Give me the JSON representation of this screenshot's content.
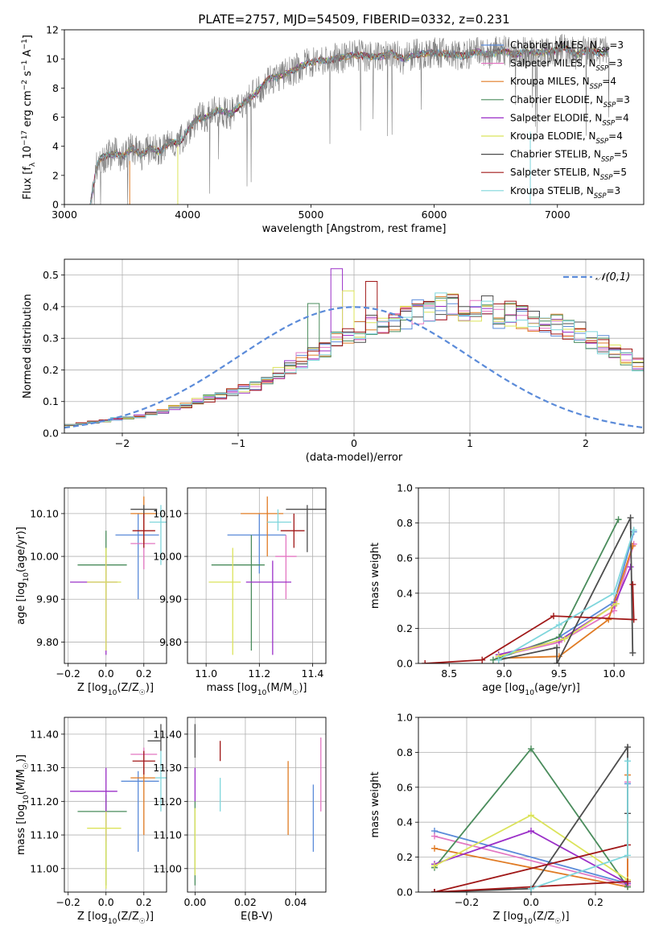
{
  "figure": {
    "title": "PLATE=2757, MJD=54509, FIBERID=0332, z=0.231"
  },
  "models": [
    {
      "name": "Chabrier MILES",
      "nssp": "3",
      "color": "#5b8bd9"
    },
    {
      "name": "Salpeter MILES",
      "nssp": "3",
      "color": "#e377c2"
    },
    {
      "name": "Kroupa MILES",
      "nssp": "4",
      "color": "#e07b24"
    },
    {
      "name": "Chabrier ELODIE",
      "nssp": "3",
      "color": "#4a8c5c"
    },
    {
      "name": "Salpeter ELODIE",
      "nssp": "4",
      "color": "#9b30c8"
    },
    {
      "name": "Kroupa ELODIE",
      "nssp": "4",
      "color": "#dbe35a"
    },
    {
      "name": "Chabrier STELIB",
      "nssp": "5",
      "color": "#4d4d4d"
    },
    {
      "name": "Salpeter STELIB",
      "nssp": "5",
      "color": "#a01818"
    },
    {
      "name": "Kroupa STELIB",
      "nssp": "3",
      "color": "#7fd6dc"
    }
  ],
  "chart_data": [
    {
      "id": "spectrum",
      "type": "line",
      "xlabel": "wavelength [Angstrom, rest frame]",
      "ylabel": "Flux [f_λ 10^-17 erg cm^-2 s^-1 A^-1]",
      "xlim": [
        3000,
        7700
      ],
      "ylim": [
        0,
        12
      ],
      "xticks": [
        3000,
        4000,
        5000,
        6000,
        7000
      ],
      "yticks": [
        0,
        2,
        4,
        6,
        8,
        10,
        12
      ],
      "grid": false,
      "legend": "right",
      "observed_series": {
        "name": "",
        "color": "#7f7f7f"
      },
      "x": [
        3210,
        3260,
        3300,
        3360,
        3420,
        3480,
        3550,
        3620,
        3700,
        3780,
        3850,
        3930,
        4000,
        4080,
        4150,
        4250,
        4350,
        4450,
        4550,
        4650,
        4750,
        4850,
        4950,
        5050,
        5150,
        5250,
        5350,
        5450,
        5550,
        5650,
        5750,
        5850,
        5950,
        6050,
        6150,
        6250,
        6350,
        6450,
        6550,
        6650,
        6750,
        6850,
        6950,
        7050,
        7150,
        7250,
        7350,
        7420
      ],
      "y": [
        0.0,
        2.6,
        3.2,
        3.4,
        3.5,
        3.3,
        3.9,
        3.4,
        3.9,
        3.6,
        4.3,
        4.2,
        5.1,
        5.9,
        6.0,
        6.5,
        6.2,
        7.0,
        7.6,
        8.6,
        8.8,
        9.2,
        9.6,
        9.9,
        9.9,
        10.1,
        10.3,
        10.2,
        10.1,
        10.4,
        10.0,
        10.3,
        10.4,
        10.4,
        10.3,
        10.2,
        10.5,
        10.3,
        10.6,
        10.3,
        10.5,
        10.4,
        10.5,
        10.8,
        10.3,
        10.6,
        10.4,
        10.5
      ]
    },
    {
      "id": "residuals",
      "type": "histogram",
      "xlabel": "(data-model)/error",
      "ylabel": "Normed distribution",
      "xlim": [
        -2.5,
        2.5
      ],
      "ylim": [
        0,
        0.55
      ],
      "xticks": [
        -2,
        -1,
        0,
        1,
        2
      ],
      "yticks": [
        0.0,
        0.1,
        0.2,
        0.3,
        0.4,
        0.5
      ],
      "grid": true,
      "legend": "top-right",
      "reference_curve": {
        "name": "𝒩(0,1)",
        "mu": 0,
        "sigma": 1,
        "style": "dashed",
        "color": "#5b8bd9"
      },
      "bin_width": 0.1,
      "bin_start": -2.5,
      "base_heights": [
        0.025,
        0.03,
        0.035,
        0.04,
        0.045,
        0.05,
        0.055,
        0.06,
        0.07,
        0.08,
        0.09,
        0.1,
        0.11,
        0.12,
        0.13,
        0.14,
        0.15,
        0.17,
        0.19,
        0.21,
        0.23,
        0.25,
        0.27,
        0.29,
        0.3,
        0.32,
        0.34,
        0.35,
        0.36,
        0.37,
        0.38,
        0.39,
        0.4,
        0.41,
        0.39,
        0.38,
        0.4,
        0.37,
        0.38,
        0.37,
        0.36,
        0.35,
        0.34,
        0.33,
        0.32,
        0.3,
        0.28,
        0.26,
        0.24,
        0.22,
        0.2,
        0.18,
        0.17,
        0.15,
        0.14,
        0.12,
        0.11,
        0.1,
        0.09,
        0.08,
        0.07,
        0.06,
        0.055,
        0.05,
        0.045,
        0.04,
        0.035,
        0.03,
        0.028,
        0.026,
        0.025,
        0.024,
        0.023,
        0.022,
        0.021,
        0.02,
        0.02,
        0.02,
        0.02,
        0.02
      ],
      "highlights": [
        {
          "bin": 23,
          "model": 4,
          "value": 0.52
        },
        {
          "bin": 24,
          "model": 5,
          "value": 0.45
        },
        {
          "bin": 26,
          "model": 7,
          "value": 0.48
        },
        {
          "bin": 21,
          "model": 3,
          "value": 0.41
        }
      ]
    },
    {
      "id": "age_vs_z",
      "type": "errorbar",
      "xlabel": "Z [log10(Z/Z☉)]",
      "ylabel": "age  [log10(age/yr)]",
      "xlim": [
        -0.22,
        0.32
      ],
      "ylim": [
        9.75,
        10.16
      ],
      "xticks": [
        -0.2,
        0.0,
        0.2
      ],
      "yticks": [
        9.8,
        9.9,
        10.0,
        10.1
      ],
      "grid": true,
      "points": [
        {
          "model": 0,
          "x": 0.17,
          "y": 10.05,
          "xerr": [
            0.12,
            0.11
          ],
          "yerr": [
            0.15,
            0.05
          ]
        },
        {
          "model": 1,
          "x": 0.2,
          "y": 10.03,
          "xerr": [
            0.07,
            0.06
          ],
          "yerr": [
            0.06,
            0.06
          ]
        },
        {
          "model": 2,
          "x": 0.2,
          "y": 10.1,
          "xerr": [
            0.07,
            0.07
          ],
          "yerr": [
            0.07,
            0.04
          ]
        },
        {
          "model": 3,
          "x": -0.0,
          "y": 9.98,
          "xerr": [
            0.15,
            0.11
          ],
          "yerr": [
            0.08,
            0.08
          ]
        },
        {
          "model": 4,
          "x": 0.0,
          "y": 9.94,
          "xerr": [
            0.19,
            0.06
          ],
          "yerr": [
            0.17,
            0.05
          ]
        },
        {
          "model": 5,
          "x": 0.0,
          "y": 9.94,
          "xerr": [
            0.1,
            0.08
          ],
          "yerr": [
            0.16,
            0.08
          ]
        },
        {
          "model": 6,
          "x": 0.2,
          "y": 10.11,
          "xerr": [
            0.07,
            0.07
          ],
          "yerr": [
            0.02,
            0.01
          ]
        },
        {
          "model": 7,
          "x": 0.2,
          "y": 10.06,
          "xerr": [
            0.06,
            0.06
          ],
          "yerr": [
            0.04,
            0.04
          ]
        },
        {
          "model": 8,
          "x": 0.29,
          "y": 10.08,
          "xerr": [
            0.06,
            0.03
          ],
          "yerr": [
            0.1,
            0.04
          ]
        }
      ]
    },
    {
      "id": "age_vs_mass",
      "type": "errorbar",
      "xlabel": "mass [log10(M/M☉)]",
      "ylabel": "",
      "xlim": [
        10.93,
        11.45
      ],
      "ylim": [
        9.75,
        10.16
      ],
      "xticks": [
        11.0,
        11.2,
        11.4
      ],
      "yticks": [
        9.8,
        9.9,
        10.0,
        10.1
      ],
      "grid": true,
      "points": [
        {
          "model": 0,
          "x": 11.2,
          "y": 10.05,
          "xerr": [
            0.12,
            0.1
          ],
          "yerr": [
            0.09,
            0.05
          ]
        },
        {
          "model": 1,
          "x": 11.3,
          "y": 10.0,
          "xerr": [
            0.04,
            0.04
          ],
          "yerr": [
            0.1,
            0.05
          ]
        },
        {
          "model": 2,
          "x": 11.23,
          "y": 10.1,
          "xerr": [
            0.1,
            0.06
          ],
          "yerr": [
            0.1,
            0.04
          ]
        },
        {
          "model": 3,
          "x": 11.17,
          "y": 9.98,
          "xerr": [
            0.15,
            0.05
          ],
          "yerr": [
            0.2,
            0.07
          ]
        },
        {
          "model": 4,
          "x": 11.25,
          "y": 9.94,
          "xerr": [
            0.1,
            0.07
          ],
          "yerr": [
            0.17,
            0.05
          ]
        },
        {
          "model": 5,
          "x": 11.1,
          "y": 9.94,
          "xerr": [
            0.09,
            0.03
          ],
          "yerr": [
            0.17,
            0.08
          ]
        },
        {
          "model": 6,
          "x": 11.38,
          "y": 10.11,
          "xerr": [
            0.08,
            0.07
          ],
          "yerr": [
            0.1,
            0.01
          ]
        },
        {
          "model": 7,
          "x": 11.33,
          "y": 10.06,
          "xerr": [
            0.05,
            0.04
          ],
          "yerr": [
            0.04,
            0.04
          ]
        },
        {
          "model": 8,
          "x": 11.27,
          "y": 10.08,
          "xerr": [
            0.04,
            0.05
          ],
          "yerr": [
            0.02,
            0.03
          ]
        }
      ]
    },
    {
      "id": "age_weights",
      "type": "line",
      "xlabel": "age  [log10(age/yr)]",
      "ylabel": "mass weight",
      "xlim": [
        8.22,
        10.27
      ],
      "ylim": [
        0.0,
        1.0
      ],
      "xticks": [
        8.5,
        9.0,
        9.5,
        10.0
      ],
      "yticks": [
        0.0,
        0.2,
        0.4,
        0.6,
        0.8,
        1.0
      ],
      "grid": true,
      "series": [
        {
          "model": 0,
          "x": [
            8.95,
            9.5,
            10.0,
            10.18
          ],
          "y": [
            0.03,
            0.15,
            0.35,
            0.75
          ]
        },
        {
          "model": 1,
          "x": [
            8.95,
            9.5,
            10.0,
            10.18
          ],
          "y": [
            0.04,
            0.12,
            0.3,
            0.68
          ]
        },
        {
          "model": 2,
          "x": [
            8.95,
            9.5,
            9.95,
            10.17
          ],
          "y": [
            0.03,
            0.04,
            0.25,
            0.67
          ]
        },
        {
          "model": 3,
          "x": [
            8.9,
            9.5,
            10.04
          ],
          "y": [
            0.02,
            0.15,
            0.82
          ]
        },
        {
          "model": 4,
          "x": [
            8.95,
            9.5,
            10.0,
            10.15
          ],
          "y": [
            0.05,
            0.13,
            0.33,
            0.55
          ]
        },
        {
          "model": 5,
          "x": [
            8.95,
            9.55,
            10.02
          ],
          "y": [
            0.04,
            0.14,
            0.34
          ]
        },
        {
          "model": 6,
          "x": [
            8.95,
            9.48,
            9.48,
            10.15,
            10.17
          ],
          "y": [
            0.02,
            0.09,
            0.0,
            0.83,
            0.06
          ]
        },
        {
          "model": 7,
          "x": [
            8.28,
            8.8,
            9.45,
            10.18,
            10.17
          ],
          "y": [
            0.0,
            0.02,
            0.27,
            0.25,
            0.45
          ]
        },
        {
          "model": 8,
          "x": [
            8.95,
            9.5,
            10.0,
            10.18
          ],
          "y": [
            0.02,
            0.22,
            0.4,
            0.76
          ]
        }
      ]
    },
    {
      "id": "mass_vs_z",
      "type": "errorbar",
      "xlabel": "Z [log10(Z/Z☉)]",
      "ylabel": "mass [log10(M/M☉)]",
      "xlim": [
        -0.22,
        0.32
      ],
      "ylim": [
        10.93,
        11.45
      ],
      "xticks": [
        -0.2,
        0.0,
        0.2
      ],
      "yticks": [
        11.0,
        11.1,
        11.2,
        11.3,
        11.4
      ],
      "grid": true,
      "points": [
        {
          "model": 0,
          "x": 0.17,
          "y": 11.26,
          "xerr": [
            0.09,
            0.11
          ],
          "yerr": [
            0.21,
            0.03
          ]
        },
        {
          "model": 1,
          "x": 0.2,
          "y": 11.34,
          "xerr": [
            0.07,
            0.07
          ],
          "yerr": [
            0.07,
            0.02
          ]
        },
        {
          "model": 2,
          "x": 0.2,
          "y": 11.27,
          "xerr": [
            0.07,
            0.06
          ],
          "yerr": [
            0.17,
            0.04
          ]
        },
        {
          "model": 3,
          "x": 0.0,
          "y": 11.17,
          "xerr": [
            0.15,
            0.11
          ],
          "yerr": [
            0.22,
            0.05
          ]
        },
        {
          "model": 4,
          "x": 0.0,
          "y": 11.23,
          "xerr": [
            0.19,
            0.06
          ],
          "yerr": [
            0.15,
            0.07
          ]
        },
        {
          "model": 5,
          "x": 0.0,
          "y": 11.12,
          "xerr": [
            0.1,
            0.08
          ],
          "yerr": [
            0.18,
            0.05
          ]
        },
        {
          "model": 6,
          "x": 0.29,
          "y": 11.38,
          "xerr": [
            0.07,
            0.0
          ],
          "yerr": [
            0.03,
            0.05
          ]
        },
        {
          "model": 7,
          "x": 0.2,
          "y": 11.32,
          "xerr": [
            0.06,
            0.06
          ],
          "yerr": [
            0.04,
            0.03
          ]
        },
        {
          "model": 8,
          "x": 0.29,
          "y": 11.27,
          "xerr": [
            0.03,
            0.03
          ],
          "yerr": [
            0.1,
            0.08
          ]
        }
      ]
    },
    {
      "id": "mass_vs_ebv",
      "type": "errorbar",
      "xlabel": "E(B-V)",
      "ylabel": "",
      "xlim": [
        -0.003,
        0.052
      ],
      "ylim": [
        10.93,
        11.45
      ],
      "xticks": [
        0.0,
        0.02,
        0.04
      ],
      "yticks": [
        11.0,
        11.1,
        11.2,
        11.3,
        11.4
      ],
      "grid": true,
      "points": [
        {
          "model": 0,
          "x": 0.047,
          "y": 11.15,
          "xerr": [
            0,
            0
          ],
          "yerr": [
            0.1,
            0.1
          ]
        },
        {
          "model": 1,
          "x": 0.05,
          "y": 11.28,
          "xerr": [
            0,
            0
          ],
          "yerr": [
            0.11,
            0.11
          ]
        },
        {
          "model": 2,
          "x": 0.037,
          "y": 11.21,
          "xerr": [
            0,
            0
          ],
          "yerr": [
            0.11,
            0.11
          ]
        },
        {
          "model": 3,
          "x": 0.0,
          "y": 11.15,
          "xerr": [
            0,
            0
          ],
          "yerr": [
            0.2,
            0.05
          ]
        },
        {
          "model": 4,
          "x": 0.0,
          "y": 11.25,
          "xerr": [
            0,
            0
          ],
          "yerr": [
            0.05,
            0.05
          ]
        },
        {
          "model": 5,
          "x": 0.0,
          "y": 11.1,
          "xerr": [
            0,
            0
          ],
          "yerr": [
            0.12,
            0.08
          ]
        },
        {
          "model": 6,
          "x": 0.0,
          "y": 11.38,
          "xerr": [
            0,
            0
          ],
          "yerr": [
            0.05,
            0.05
          ]
        },
        {
          "model": 7,
          "x": 0.01,
          "y": 11.35,
          "xerr": [
            0,
            0
          ],
          "yerr": [
            0.03,
            0.03
          ]
        },
        {
          "model": 8,
          "x": 0.01,
          "y": 11.22,
          "xerr": [
            0,
            0
          ],
          "yerr": [
            0.05,
            0.05
          ]
        }
      ]
    },
    {
      "id": "z_weights",
      "type": "line",
      "xlabel": "Z [log10(Z/Z☉)]",
      "ylabel": "mass weight",
      "xlim": [
        -0.35,
        0.35
      ],
      "ylim": [
        0.0,
        1.0
      ],
      "xticks": [
        -0.2,
        0.0,
        0.2
      ],
      "yticks": [
        0.0,
        0.2,
        0.4,
        0.6,
        0.8,
        1.0
      ],
      "grid": true,
      "series": [
        {
          "model": 0,
          "x": [
            -0.3,
            0.3,
            0.3
          ],
          "y": [
            0.35,
            0.05,
            0.62
          ]
        },
        {
          "model": 1,
          "x": [
            -0.3,
            0.3,
            0.3
          ],
          "y": [
            0.32,
            0.04,
            0.63
          ]
        },
        {
          "model": 2,
          "x": [
            -0.3,
            0.3,
            0.3
          ],
          "y": [
            0.25,
            0.03,
            0.67
          ]
        },
        {
          "model": 3,
          "x": [
            -0.3,
            0.0,
            0.3
          ],
          "y": [
            0.14,
            0.82,
            0.03
          ]
        },
        {
          "model": 4,
          "x": [
            -0.3,
            0.0,
            0.3
          ],
          "y": [
            0.16,
            0.35,
            0.05
          ]
        },
        {
          "model": 5,
          "x": [
            -0.3,
            0.0,
            0.3
          ],
          "y": [
            0.15,
            0.44,
            0.07
          ]
        },
        {
          "model": 6,
          "x": [
            -0.3,
            0.0,
            0.3,
            0.3
          ],
          "y": [
            0.0,
            0.02,
            0.83,
            0.45
          ]
        },
        {
          "model": 7,
          "x": [
            -0.3,
            0.3,
            -0.3,
            0.3
          ],
          "y": [
            0.0,
            0.27,
            0.0,
            0.06
          ]
        },
        {
          "model": 8,
          "x": [
            0.0,
            0.3,
            0.3
          ],
          "y": [
            0.02,
            0.21,
            0.75
          ]
        }
      ]
    }
  ]
}
